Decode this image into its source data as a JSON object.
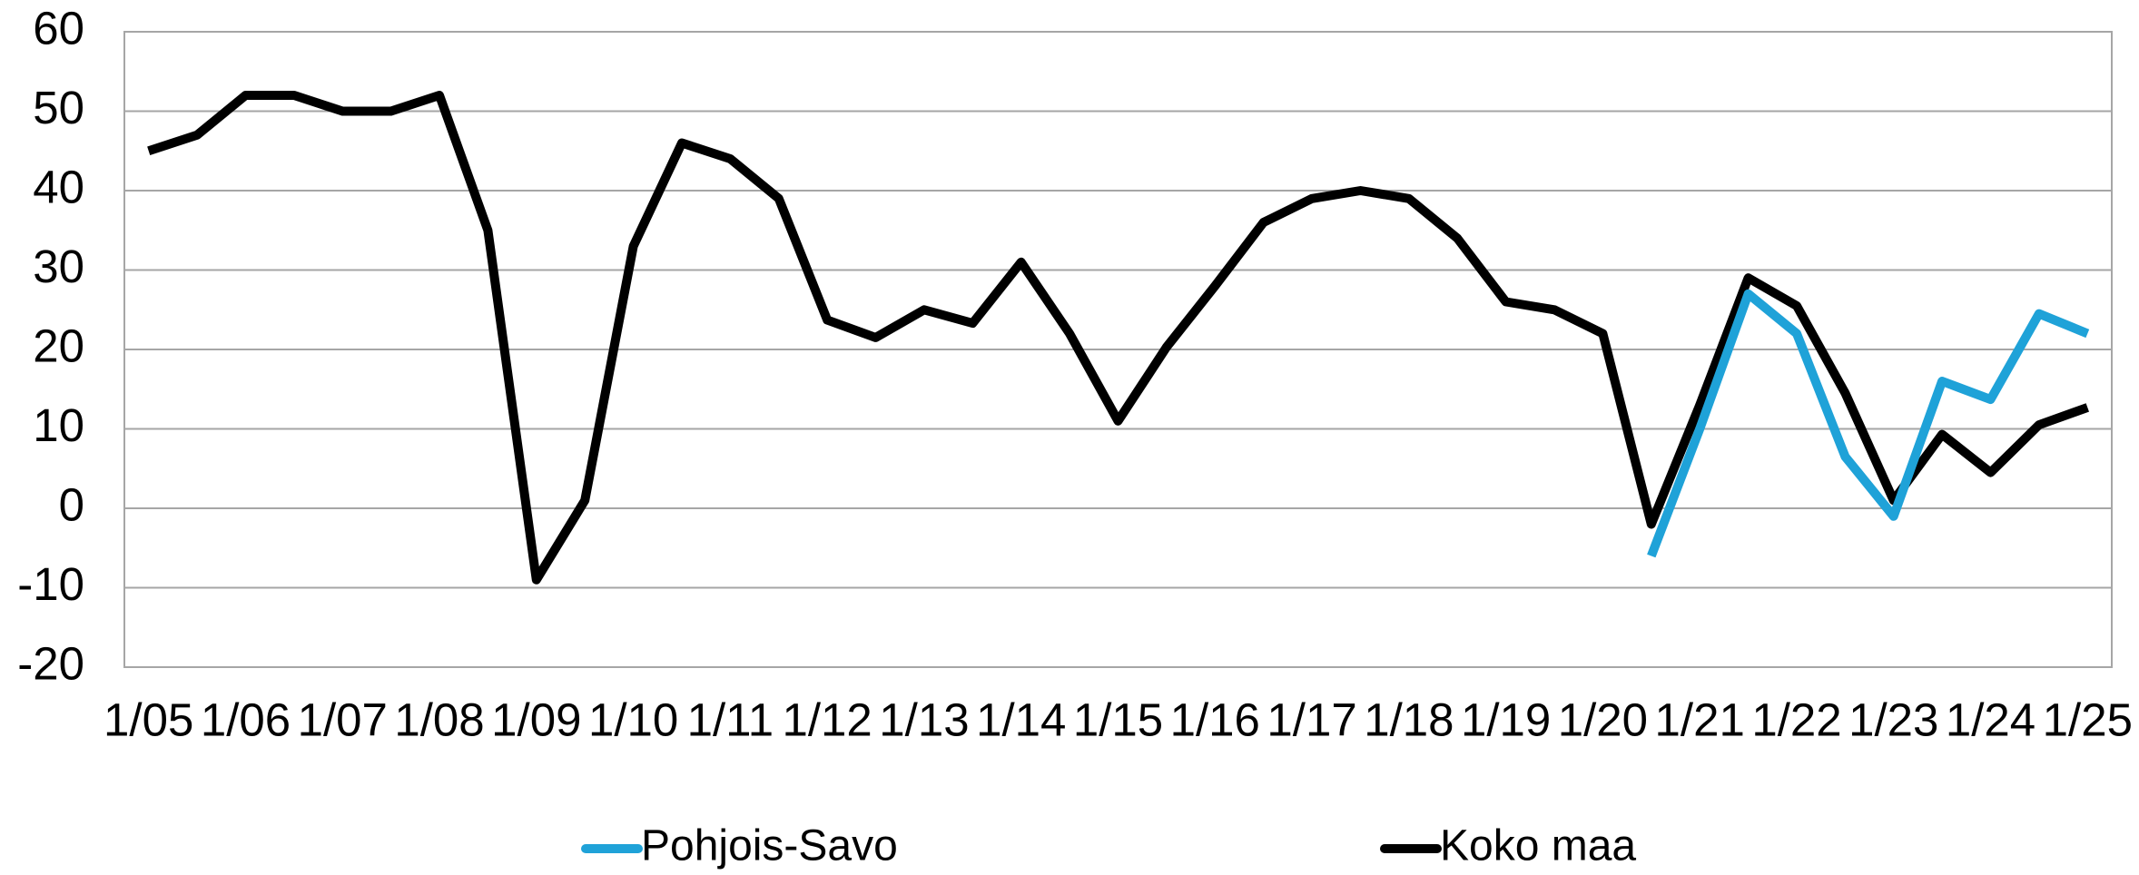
{
  "chart_data": {
    "type": "line",
    "categories": [
      "1/05",
      null,
      "1/06",
      null,
      "1/07",
      null,
      "1/08",
      null,
      "1/09",
      null,
      "1/10",
      null,
      "1/11",
      null,
      "1/12",
      null,
      "1/13",
      null,
      "1/14",
      null,
      "1/15",
      null,
      "1/16",
      null,
      "1/17",
      null,
      "1/18",
      null,
      "1/19",
      null,
      "1/20",
      null,
      "1/21",
      null,
      "1/22",
      null,
      "1/23",
      null,
      "1/24",
      null,
      "1/25"
    ],
    "series": [
      {
        "name": "Pohjois-Savo",
        "color": "#1fa2d8",
        "values": [
          null,
          null,
          null,
          null,
          null,
          null,
          null,
          null,
          null,
          null,
          null,
          null,
          null,
          null,
          null,
          null,
          null,
          null,
          null,
          null,
          null,
          null,
          null,
          null,
          null,
          null,
          null,
          null,
          null,
          null,
          null,
          -6,
          10,
          27,
          22,
          6.5,
          -1,
          16,
          13.7,
          24.5,
          22
        ]
      },
      {
        "name": "Koko maa",
        "color": "#000000",
        "values": [
          45,
          47,
          52,
          52,
          50,
          50,
          52,
          35,
          -9,
          1,
          33,
          46,
          44,
          39,
          23.7,
          21.5,
          25,
          23.3,
          31,
          22,
          11,
          20.3,
          28,
          36,
          39,
          40,
          39,
          34,
          26,
          25,
          22,
          -2,
          13,
          29,
          25.5,
          14.5,
          1,
          9.3,
          4.5,
          10.5,
          12.7
        ]
      }
    ],
    "ylim": [
      -20,
      60
    ],
    "yticks": [
      -20,
      -10,
      0,
      10,
      20,
      30,
      40,
      50,
      60
    ],
    "grid": true
  }
}
